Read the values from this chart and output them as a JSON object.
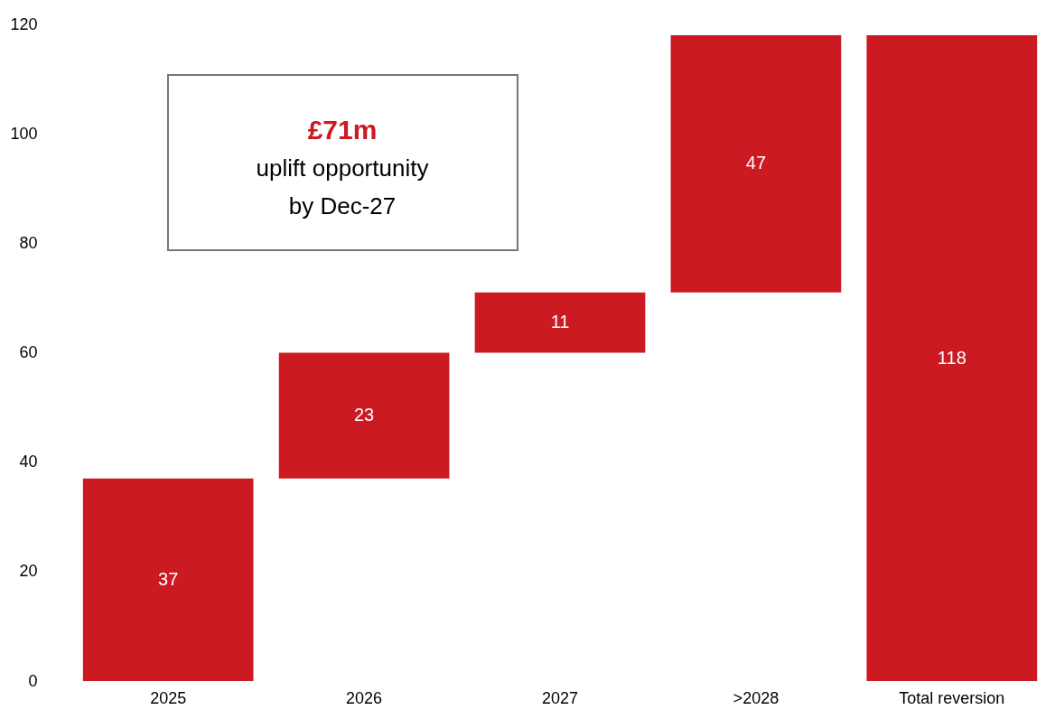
{
  "chart_data": {
    "type": "bar",
    "categories": [
      "2025",
      "2026",
      "2027",
      ">2028",
      "Total reversion"
    ],
    "values": [
      37,
      23,
      11,
      47,
      118
    ],
    "base": [
      0,
      37,
      60,
      71,
      0
    ],
    "color": "#cc1a22",
    "ylim": [
      0,
      120
    ],
    "yticks": [
      0,
      20,
      40,
      60,
      80,
      100,
      120
    ],
    "grid": false,
    "data_labels": true,
    "annotations": [
      "£71m",
      "uplift opportunity",
      "by Dec-27"
    ]
  }
}
